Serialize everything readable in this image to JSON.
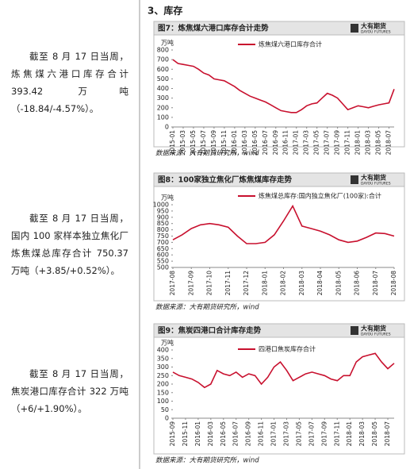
{
  "paragraphs": [
    "截至 8 月 17 日当周，炼焦煤六港口库存合计 393.42 万吨（-18.84/-4.57%）。",
    "截至 8 月 17 日当周，国内 100 家样本独立焦化厂炼焦煤总库存合计 750.37 万吨（+3.85/+0.52%）。",
    "截至 8 月 17 日当周，焦炭港口库存合计 322 万吨（+6/+1.90%）。"
  ],
  "section_heading": "3、库存",
  "brand": {
    "name": "大有期货",
    "sub": "DAYOU FUTURES"
  },
  "source": "数据来源：大有期货研究所，wind",
  "chart_data": [
    {
      "type": "line",
      "title": "图7：炼焦煤六港口库存合计走势",
      "y_unit": "万吨",
      "categories": [
        "2015-01",
        null,
        "2015-03",
        null,
        "2015-05",
        null,
        "2015-07",
        null,
        "2015-09",
        null,
        "2015-11",
        null,
        "2016-01",
        null,
        "2016-03",
        null,
        "2016-05",
        null,
        "2016-07",
        null,
        "2016-09",
        null,
        "2016-11",
        null,
        "2017-01",
        null,
        "2017-03",
        null,
        "2017-05",
        null,
        "2017-07",
        null,
        "2017-09",
        null,
        "2017-11",
        null,
        "2018-01",
        null,
        "2018-03",
        null,
        "2018-05",
        null,
        "2018-07",
        null
      ],
      "series": [
        {
          "name": "炼焦煤六港口库存合计",
          "color": "#c8102e",
          "values": [
            700,
            660,
            650,
            640,
            630,
            600,
            560,
            540,
            500,
            490,
            480,
            450,
            420,
            380,
            350,
            320,
            300,
            280,
            260,
            230,
            200,
            170,
            160,
            150,
            150,
            180,
            220,
            240,
            250,
            300,
            350,
            330,
            300,
            240,
            180,
            200,
            220,
            210,
            200,
            215,
            230,
            240,
            250,
            393
          ]
        }
      ],
      "ylim": [
        0,
        800
      ],
      "yticks": [
        0,
        100,
        200,
        300,
        400,
        500,
        600,
        700,
        800
      ]
    },
    {
      "type": "line",
      "title": "图8：100家独立焦化厂炼焦煤库存走势",
      "y_unit": "万吨",
      "categories": [
        "2017-08",
        null,
        "2017-09",
        null,
        "2017-10",
        null,
        "2017-11",
        null,
        "2017-12",
        null,
        "2018-01",
        null,
        "2018-02",
        null,
        "2018-03",
        null,
        "2018-04",
        null,
        "2018-05",
        null,
        "2018-06",
        null,
        "2018-07",
        null,
        "2018-08"
      ],
      "series": [
        {
          "name": "炼焦煤总库存:国内独立焦化厂(100家):合计",
          "color": "#c8102e",
          "values": [
            720,
            760,
            810,
            840,
            850,
            840,
            820,
            750,
            690,
            690,
            700,
            760,
            870,
            990,
            830,
            810,
            790,
            760,
            720,
            700,
            710,
            740,
            775,
            770,
            750
          ]
        }
      ],
      "ylim": [
        500,
        1000
      ],
      "yticks": [
        500,
        550,
        600,
        650,
        700,
        750,
        800,
        850,
        900,
        950,
        1000
      ]
    },
    {
      "type": "line",
      "title": "图9：焦炭四港口合计库存走势",
      "y_unit": "万吨",
      "categories": [
        "2015-09",
        null,
        "2015-11",
        null,
        "2016-01",
        null,
        "2016-03",
        null,
        "2016-05",
        null,
        "2016-07",
        null,
        "2016-09",
        null,
        "2016-11",
        null,
        "2017-01",
        null,
        "2017-03",
        null,
        "2017-05",
        null,
        "2017-07",
        null,
        "2017-09",
        null,
        "2017-11",
        null,
        "2018-01",
        null,
        "2018-03",
        null,
        "2018-05",
        null,
        "2018-07",
        null
      ],
      "series": [
        {
          "name": "四港口焦炭库存合计",
          "color": "#c8102e",
          "values": [
            270,
            250,
            240,
            230,
            210,
            180,
            200,
            280,
            260,
            250,
            270,
            240,
            260,
            250,
            200,
            240,
            300,
            330,
            280,
            220,
            240,
            260,
            270,
            260,
            250,
            230,
            220,
            250,
            250,
            330,
            360,
            370,
            380,
            330,
            290,
            322
          ]
        }
      ],
      "ylim": [
        0,
        400
      ],
      "yticks": [
        0,
        50,
        100,
        150,
        200,
        250,
        300,
        350,
        400
      ]
    }
  ]
}
